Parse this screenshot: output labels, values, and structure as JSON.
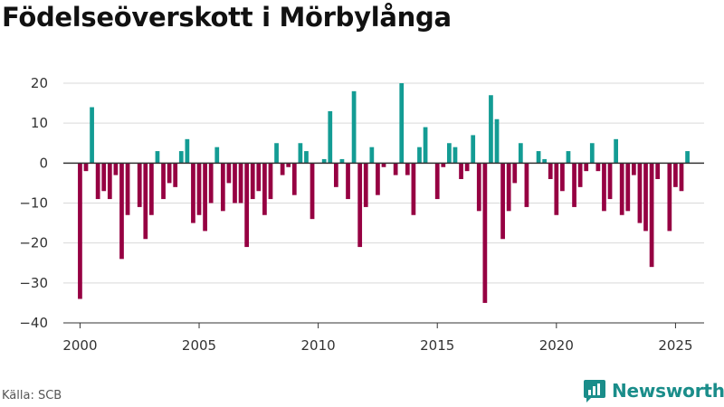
{
  "chart_data": {
    "type": "bar",
    "title": "Födelseöverskott i Mörbylånga",
    "source": "Källa: SCB",
    "brand": "Newsworthy",
    "xlabel": "",
    "ylabel": "",
    "ylim": [
      -40,
      20
    ],
    "yticks": [
      20,
      10,
      0,
      -10,
      -20,
      -30,
      -40
    ],
    "xlim": [
      1999.3,
      2026.2
    ],
    "xticks": [
      2000,
      2005,
      2010,
      2015,
      2020,
      2025
    ],
    "positive_color": "#139c94",
    "negative_color": "#960042",
    "start_year": 2000,
    "interval": "quarter",
    "values": [
      -34,
      -2,
      14,
      -9,
      -7,
      -9,
      -3,
      -24,
      -13,
      0,
      -11,
      -19,
      -13,
      3,
      -9,
      -5,
      -6,
      3,
      6,
      -15,
      -13,
      -17,
      -10,
      4,
      -12,
      -5,
      -10,
      -10,
      -21,
      -9,
      -7,
      -13,
      -9,
      5,
      -3,
      -1,
      -8,
      5,
      3,
      -14,
      0,
      1,
      13,
      -6,
      1,
      -9,
      18,
      -21,
      -11,
      4,
      -8,
      -1,
      0,
      -3,
      20,
      -3,
      -13,
      4,
      9,
      0,
      -9,
      -1,
      5,
      4,
      -4,
      -2,
      7,
      -12,
      -35,
      17,
      11,
      -19,
      -12,
      -5,
      5,
      -11,
      0,
      3,
      1,
      -4,
      -13,
      -7,
      3,
      -11,
      -6,
      -2,
      5,
      -2,
      -12,
      -9,
      6,
      -13,
      -12,
      -3,
      -15,
      -17,
      -26,
      -4,
      0,
      -17,
      -6,
      -7,
      3
    ]
  }
}
